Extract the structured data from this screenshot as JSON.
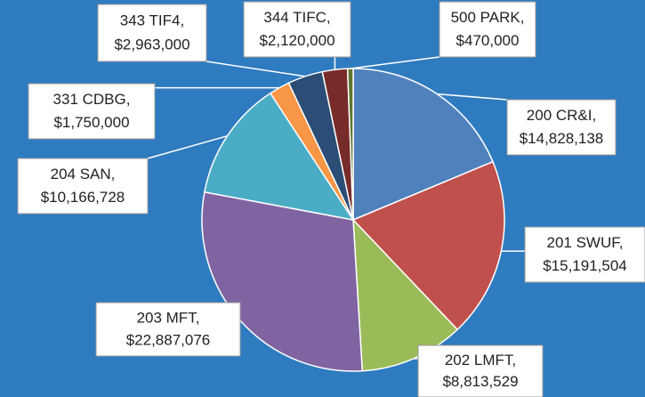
{
  "chart_data": {
    "type": "pie",
    "categories": [
      "200 CR&I,",
      "201 SWUF,",
      "202 LMFT,",
      "203 MFT,",
      "204 SAN,",
      "331 CDBG,",
      "343 TIF4,",
      "344 TIFC,",
      "500 PARK,"
    ],
    "values": [
      14828138,
      15191504,
      8813529,
      22887076,
      10166728,
      1750000,
      2963000,
      2120000,
      470000
    ],
    "value_labels": [
      "$14,828,138",
      "$15,191,504",
      "$8,813,529",
      "$22,887,076",
      "$10,166,728",
      "$1,750,000",
      "$2,963,000",
      "$2,120,000",
      "$470,000"
    ],
    "colors": [
      "#4f81bd",
      "#c0504d",
      "#9bbb59",
      "#8064a2",
      "#4bacc6",
      "#f79646",
      "#2c4d75",
      "#772c2a",
      "#5f7530"
    ]
  }
}
